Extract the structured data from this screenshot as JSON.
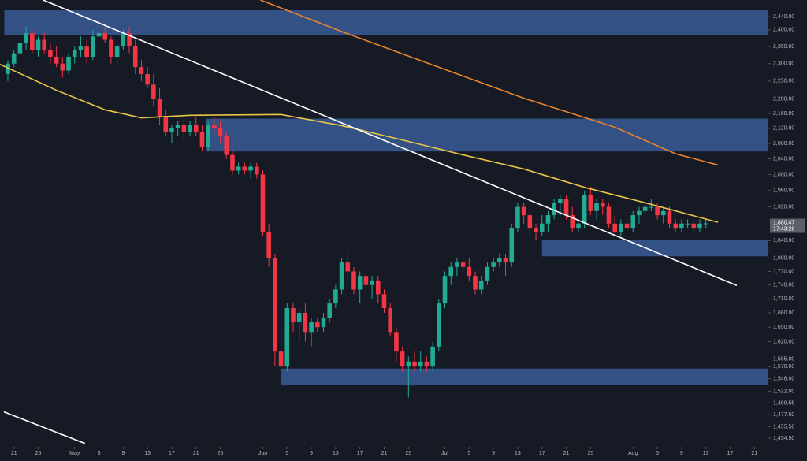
{
  "chart_data": {
    "type": "candlestick",
    "up_color": "#22ab94",
    "down_color": "#f23645",
    "log_scale": true,
    "grid": false,
    "xlim": [
      -1.3,
      125.3
    ],
    "ylim": [
      1419,
      2492
    ],
    "xticks": [
      {
        "value": 1,
        "label": "21"
      },
      {
        "value": 5,
        "label": "25"
      },
      {
        "value": 11,
        "label": "May"
      },
      {
        "value": 15,
        "label": "5"
      },
      {
        "value": 19,
        "label": "9"
      },
      {
        "value": 23,
        "label": "13"
      },
      {
        "value": 27,
        "label": "17"
      },
      {
        "value": 31,
        "label": "21"
      },
      {
        "value": 35,
        "label": "25"
      },
      {
        "value": 42,
        "label": "Jun"
      },
      {
        "value": 46,
        "label": "5"
      },
      {
        "value": 50,
        "label": "9"
      },
      {
        "value": 54,
        "label": "13"
      },
      {
        "value": 58,
        "label": "17"
      },
      {
        "value": 62,
        "label": "21"
      },
      {
        "value": 66,
        "label": "25"
      },
      {
        "value": 72,
        "label": "Jul"
      },
      {
        "value": 76,
        "label": "5"
      },
      {
        "value": 80,
        "label": "9"
      },
      {
        "value": 84,
        "label": "13"
      },
      {
        "value": 88,
        "label": "17"
      },
      {
        "value": 92,
        "label": "21"
      },
      {
        "value": 96,
        "label": "25"
      },
      {
        "value": 103,
        "label": "Aug"
      },
      {
        "value": 107,
        "label": "5"
      },
      {
        "value": 111,
        "label": "9"
      },
      {
        "value": 115,
        "label": "13"
      },
      {
        "value": 119,
        "label": "17"
      },
      {
        "value": 123,
        "label": "21"
      }
    ],
    "yticks": [
      {
        "value": 2440,
        "label": "2,440.00"
      },
      {
        "value": 2400,
        "label": "2,400.00"
      },
      {
        "value": 2350,
        "label": "2,350.00"
      },
      {
        "value": 2300,
        "label": "2,300.00"
      },
      {
        "value": 2250,
        "label": "2,250.00"
      },
      {
        "value": 2200,
        "label": "2,200.00"
      },
      {
        "value": 2160,
        "label": "2,160.00"
      },
      {
        "value": 2120,
        "label": "2,120.00"
      },
      {
        "value": 2080,
        "label": "2,080.00"
      },
      {
        "value": 2040,
        "label": "2,040.00"
      },
      {
        "value": 2000,
        "label": "2,000.00"
      },
      {
        "value": 1960,
        "label": "1,960.00"
      },
      {
        "value": 1920,
        "label": "1,920.00"
      },
      {
        "value": 1840,
        "label": "1,840.00"
      },
      {
        "value": 1800,
        "label": "1,800.00"
      },
      {
        "value": 1770,
        "label": "1,770.00"
      },
      {
        "value": 1740,
        "label": "1,740.00"
      },
      {
        "value": 1710,
        "label": "1,710.00"
      },
      {
        "value": 1680,
        "label": "1,680.00"
      },
      {
        "value": 1650,
        "label": "1,650.00"
      },
      {
        "value": 1620,
        "label": "1,620.00"
      },
      {
        "value": 1585,
        "label": "1,585.00"
      },
      {
        "value": 1570,
        "label": "1,570.00"
      },
      {
        "value": 1546,
        "label": "1,546.00"
      },
      {
        "value": 1522,
        "label": "1,522.00"
      },
      {
        "value": 1499.55,
        "label": "1,499.55"
      },
      {
        "value": 1477.5,
        "label": "1,477.50"
      },
      {
        "value": 1455.5,
        "label": "1,455.50"
      },
      {
        "value": 1434.5,
        "label": "1,434.50"
      }
    ],
    "last_price": {
      "value": 1880.47,
      "label": "1,880.47"
    },
    "time_label": "17:43:28",
    "open": [
      2270,
      2300,
      2330,
      2360,
      2390,
      2340,
      2370,
      2340,
      2320,
      2300,
      2280,
      2320,
      2340,
      2350,
      2320,
      2380,
      2390,
      2370,
      2320,
      2350,
      2390,
      2350,
      2290,
      2270,
      2240,
      2200,
      2150,
      2110,
      2120,
      2130,
      2110,
      2130,
      2110,
      2070,
      2130,
      2120,
      2100,
      2050,
      2010,
      2020,
      2010,
      2020,
      2000,
      1860,
      1800,
      1600,
      1570,
      1690,
      1660,
      1680,
      1640,
      1660,
      1650,
      1670,
      1700,
      1730,
      1790,
      1770,
      1730,
      1760,
      1740,
      1750,
      1720,
      1690,
      1640,
      1600,
      1570,
      1580,
      1570,
      1580,
      1570,
      1610,
      1700,
      1760,
      1780,
      1790,
      1780,
      1760,
      1730,
      1750,
      1780,
      1790,
      1800,
      1790,
      1870,
      1920,
      1900,
      1870,
      1860,
      1880,
      1900,
      1930,
      1940,
      1900,
      1870,
      1880,
      1950,
      1910,
      1930,
      1920,
      1880,
      1860,
      1880,
      1870,
      1900,
      1910,
      1920,
      1920,
      1900,
      1910,
      1880,
      1870,
      1880,
      1880,
      1870,
      1880
    ],
    "high": [
      2310,
      2340,
      2370,
      2410,
      2400,
      2380,
      2390,
      2360,
      2350,
      2320,
      2330,
      2350,
      2380,
      2370,
      2400,
      2410,
      2420,
      2380,
      2360,
      2400,
      2410,
      2370,
      2310,
      2290,
      2270,
      2230,
      2170,
      2130,
      2140,
      2140,
      2140,
      2150,
      2130,
      2140,
      2150,
      2140,
      2110,
      2060,
      2030,
      2030,
      2030,
      2030,
      2010,
      1880,
      1810,
      1640,
      1700,
      1700,
      1690,
      1700,
      1670,
      1670,
      1680,
      1710,
      1740,
      1800,
      1810,
      1780,
      1770,
      1770,
      1760,
      1760,
      1730,
      1700,
      1650,
      1610,
      1590,
      1600,
      1600,
      1590,
      1620,
      1710,
      1770,
      1790,
      1800,
      1810,
      1800,
      1770,
      1760,
      1790,
      1800,
      1810,
      1810,
      1880,
      1930,
      1930,
      1910,
      1880,
      1900,
      1910,
      1940,
      1950,
      1950,
      1920,
      1890,
      1960,
      1970,
      1940,
      1940,
      1930,
      1900,
      1890,
      1900,
      1910,
      1920,
      1930,
      1940,
      1930,
      1920,
      1920,
      1890,
      1890,
      1890,
      1890,
      1890,
      1890
    ],
    "low": [
      2250,
      2290,
      2320,
      2340,
      2330,
      2320,
      2330,
      2300,
      2290,
      2260,
      2270,
      2300,
      2320,
      2300,
      2310,
      2350,
      2360,
      2300,
      2290,
      2340,
      2330,
      2270,
      2250,
      2230,
      2180,
      2130,
      2100,
      2080,
      2100,
      2090,
      2100,
      2100,
      2060,
      2060,
      2110,
      2080,
      2040,
      2000,
      2000,
      2000,
      1990,
      1990,
      1850,
      1780,
      1570,
      1560,
      1560,
      1640,
      1620,
      1620,
      1610,
      1640,
      1640,
      1660,
      1690,
      1720,
      1750,
      1720,
      1700,
      1720,
      1710,
      1700,
      1680,
      1630,
      1580,
      1560,
      1510,
      1560,
      1560,
      1560,
      1560,
      1600,
      1690,
      1740,
      1760,
      1770,
      1750,
      1720,
      1720,
      1740,
      1770,
      1780,
      1760,
      1780,
      1860,
      1880,
      1850,
      1840,
      1850,
      1860,
      1890,
      1900,
      1890,
      1860,
      1860,
      1870,
      1900,
      1890,
      1900,
      1870,
      1850,
      1850,
      1860,
      1860,
      1880,
      1900,
      1910,
      1890,
      1880,
      1870,
      1860,
      1860,
      1870,
      1860,
      1860,
      1870
    ],
    "close": [
      2300,
      2330,
      2360,
      2390,
      2340,
      2370,
      2340,
      2320,
      2300,
      2280,
      2320,
      2340,
      2350,
      2320,
      2380,
      2390,
      2370,
      2320,
      2350,
      2390,
      2350,
      2290,
      2270,
      2240,
      2200,
      2150,
      2110,
      2120,
      2130,
      2110,
      2130,
      2110,
      2070,
      2130,
      2120,
      2100,
      2050,
      2010,
      2020,
      2010,
      2020,
      2000,
      1860,
      1800,
      1600,
      1570,
      1690,
      1660,
      1680,
      1640,
      1660,
      1650,
      1670,
      1700,
      1730,
      1790,
      1770,
      1730,
      1760,
      1740,
      1750,
      1720,
      1690,
      1640,
      1600,
      1570,
      1580,
      1570,
      1580,
      1570,
      1610,
      1700,
      1760,
      1780,
      1790,
      1780,
      1760,
      1730,
      1750,
      1780,
      1790,
      1800,
      1790,
      1870,
      1920,
      1900,
      1870,
      1860,
      1880,
      1900,
      1930,
      1940,
      1900,
      1870,
      1880,
      1950,
      1910,
      1930,
      1920,
      1880,
      1860,
      1880,
      1870,
      1900,
      1910,
      1920,
      1920,
      1900,
      1910,
      1880,
      1870,
      1880,
      1880,
      1870,
      1880,
      1880.47
    ],
    "zones": [
      {
        "low": 2385,
        "high": 2460,
        "start": -0.6
      },
      {
        "low": 2059,
        "high": 2146,
        "start": 32.7
      },
      {
        "low": 1804,
        "high": 1842,
        "start": 88
      },
      {
        "low": 1534,
        "high": 1566,
        "start": 45
      }
    ],
    "lines": [
      {
        "color": "#e8c547",
        "x": [
          -1.3,
          8,
          16,
          22,
          30,
          45,
          55,
          65,
          75,
          85,
          95,
          105,
          117
        ],
        "values": [
          2298,
          2224,
          2170,
          2148,
          2155,
          2157,
          2127,
          2089,
          2050,
          2014,
          1968,
          1930,
          1883
        ]
      },
      {
        "color": "#e5832e",
        "x": [
          41.6,
          55,
          70,
          85,
          100,
          110,
          117
        ],
        "values": [
          2492,
          2395,
          2296,
          2202,
          2123,
          2053,
          2024
        ]
      },
      {
        "color": "#ffffff",
        "x": [
          5.8,
          120.1
        ],
        "values": [
          2492,
          1739
        ]
      },
      {
        "color": "#ffffff",
        "x": [
          -0.65,
          12.7
        ],
        "values": [
          1483,
          1425
        ]
      }
    ]
  }
}
